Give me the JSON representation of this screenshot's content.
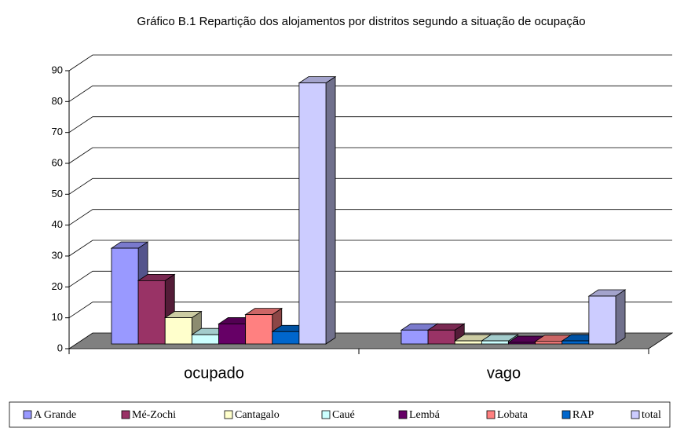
{
  "chart_data": {
    "type": "bar3d",
    "title": "Gráfico B.1  Repartição dos alojamentos por distritos segundo a situação de ocupação",
    "categories": [
      "ocupado",
      "vago"
    ],
    "series": [
      {
        "name": "A Grande",
        "color": "#9999ff",
        "values": [
          31,
          4.5
        ]
      },
      {
        "name": "Mé-Zochi",
        "color": "#993366",
        "values": [
          20.5,
          4.5
        ]
      },
      {
        "name": "Cantagalo",
        "color": "#ffffcc",
        "values": [
          8.5,
          1
        ]
      },
      {
        "name": "Caué",
        "color": "#ccffff",
        "values": [
          3,
          1
        ]
      },
      {
        "name": "Lembá",
        "color": "#660066",
        "values": [
          6.5,
          0.5
        ]
      },
      {
        "name": "Lobata",
        "color": "#ff8080",
        "values": [
          9.5,
          0.8
        ]
      },
      {
        "name": "RAP",
        "color": "#0066cc",
        "values": [
          4,
          1
        ]
      },
      {
        "name": "total",
        "color": "#ccccff",
        "values": [
          84.5,
          15.5
        ]
      }
    ],
    "ylim": [
      0,
      90
    ],
    "yticks": [
      0,
      10,
      20,
      30,
      40,
      50,
      60,
      70,
      80,
      90
    ],
    "grid": true,
    "legend": "bottom"
  }
}
